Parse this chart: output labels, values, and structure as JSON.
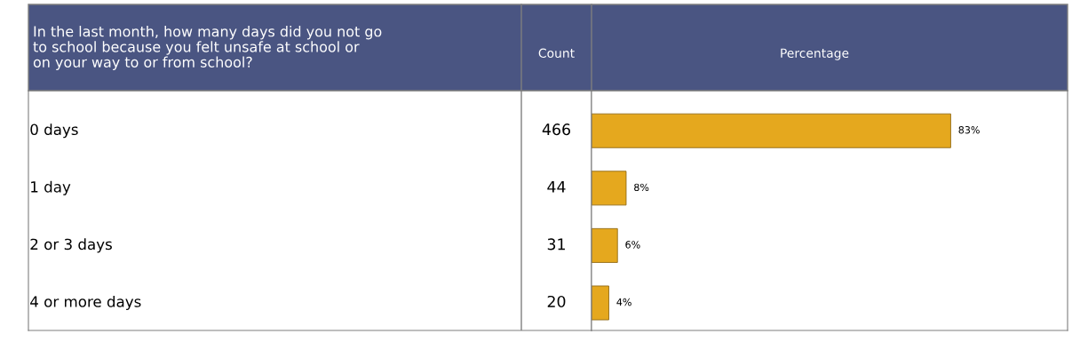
{
  "chart_data": [
    {
      "type": "other",
      "title": "In the last month, how many days did you not go\nto school because you felt unsafe at school or\non your way to or from school?",
      "xlabel": "Count",
      "categories": [
        "0 days",
        "1 day",
        "2 or 3 days",
        "4 or more days"
      ],
      "values": [
        466,
        44,
        31,
        20
      ],
      "data_labels": true
    },
    {
      "type": "bar",
      "orientation": "horizontal",
      "title": "Percentage",
      "categories": [
        null,
        null,
        null,
        null
      ],
      "values": [
        83,
        8,
        6,
        4
      ],
      "value_labels": [
        "83%",
        "8%",
        "6%",
        "4%"
      ],
      "color": "#e5a81e",
      "xlim": [
        0,
        110
      ]
    }
  ]
}
